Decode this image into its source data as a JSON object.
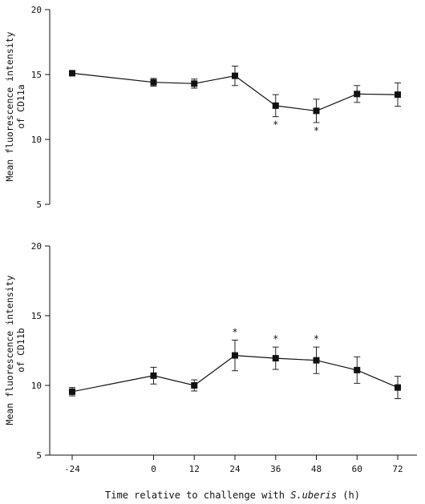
{
  "chart_data": [
    {
      "type": "line",
      "panel": "top",
      "ylabel_lines": [
        "Mean fluorescence intensity",
        "of CD11a"
      ],
      "ylim": [
        5,
        20
      ],
      "yticks": [
        5,
        10,
        15,
        20
      ],
      "x": [
        -24,
        0,
        12,
        24,
        36,
        48,
        60,
        72
      ],
      "values": [
        15.1,
        14.4,
        14.3,
        14.9,
        12.6,
        12.2,
        13.5,
        13.45
      ],
      "errors": [
        0.2,
        0.3,
        0.35,
        0.75,
        0.85,
        0.9,
        0.65,
        0.9
      ],
      "significant_markers": [
        {
          "x": 36,
          "label": "*"
        },
        {
          "x": 48,
          "label": "*"
        }
      ]
    },
    {
      "type": "line",
      "panel": "bottom",
      "ylabel_lines": [
        "Mean fluorescence intensity",
        "of CD11b"
      ],
      "ylim": [
        5,
        20
      ],
      "yticks": [
        5,
        10,
        15,
        20
      ],
      "x": [
        -24,
        0,
        12,
        24,
        36,
        48,
        60,
        72
      ],
      "values": [
        9.55,
        10.7,
        10.0,
        12.15,
        11.95,
        11.8,
        11.1,
        9.85
      ],
      "errors": [
        0.3,
        0.6,
        0.4,
        1.1,
        0.8,
        0.95,
        0.95,
        0.8
      ],
      "significant_markers": [
        {
          "x": 24,
          "label": "*"
        },
        {
          "x": 36,
          "label": "*"
        },
        {
          "x": 48,
          "label": "*"
        }
      ]
    }
  ],
  "x_axis": {
    "ticks": [
      -24,
      0,
      12,
      24,
      36,
      48,
      60,
      72
    ],
    "tick_labels": [
      "-24",
      "0",
      "12",
      "24",
      "36",
      "48",
      "60",
      "72"
    ],
    "label_prefix": "Time relative to challenge with ",
    "label_italic": "S.uberis",
    "label_suffix": " (h)"
  }
}
